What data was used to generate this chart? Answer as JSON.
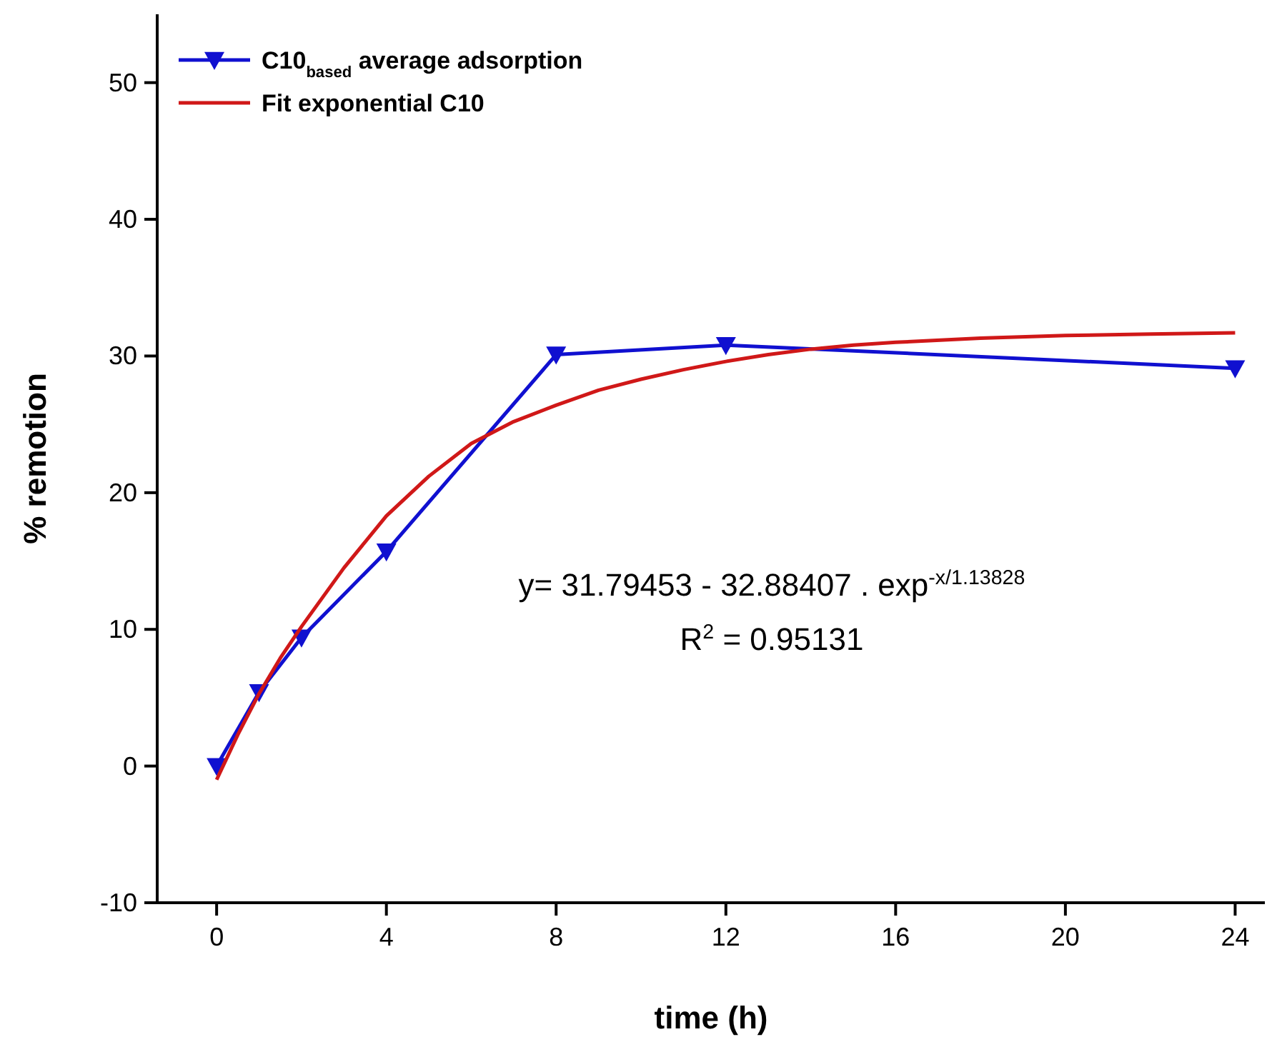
{
  "chart_data": {
    "type": "line",
    "xlabel": "time (h)",
    "ylabel": "% remotion",
    "xlim": [
      -1.4,
      24.7
    ],
    "ylim": [
      -10,
      55
    ],
    "xticks": [
      0,
      4,
      8,
      12,
      16,
      20,
      24
    ],
    "yticks": [
      -10,
      0,
      10,
      20,
      30,
      40,
      50
    ],
    "grid": false,
    "legend": "top left",
    "series": [
      {
        "name": "C10$_{based}$ average adsorption",
        "color": "#1010d0",
        "marker": "triangle",
        "x": [
          0,
          1,
          2,
          4,
          8,
          12,
          24
        ],
        "values": [
          0,
          5.4,
          9.4,
          15.7,
          30.1,
          30.8,
          29.1
        ]
      },
      {
        "name": "Fit exponential C10",
        "color": "#d01818",
        "marker": "none",
        "x": [
          0,
          0.5,
          1,
          1.5,
          2,
          3,
          4,
          5,
          6,
          7,
          8,
          9,
          10,
          11,
          12,
          13,
          14,
          15,
          16,
          18,
          20,
          22,
          24
        ],
        "values": [
          -1,
          2.3,
          5.3,
          7.9,
          10.2,
          14.5,
          18.3,
          21.2,
          23.6,
          25.2,
          26.4,
          27.5,
          28.3,
          29.0,
          29.6,
          30.1,
          30.5,
          30.8,
          31.0,
          31.3,
          31.5,
          31.6,
          31.7
        ]
      }
    ],
    "annotations": [
      "y= 31.79453 - 32.88407 . exp$^{-x/1.13828}$",
      "R$^{2}$ = 0.95131"
    ]
  }
}
